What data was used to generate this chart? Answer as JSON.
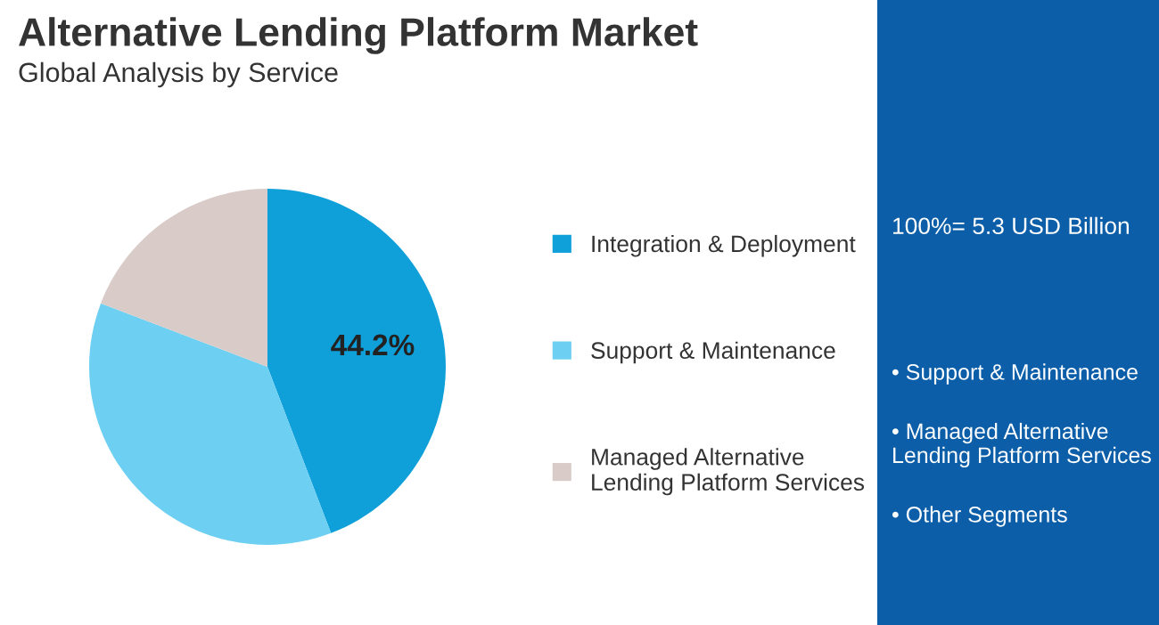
{
  "chart_data": [
    {
      "type": "pie",
      "title": "Alternative Lending Platform Market",
      "subtitle": "Global Analysis by Service",
      "categories": [
        "Integration & Deployment",
        "Support & Maintenance",
        "Managed Alternative Lending Platform Services"
      ],
      "values": [
        44.2,
        36.6,
        19.2
      ],
      "colors": [
        "#0f9fd9",
        "#6dcff2",
        "#d9ccc8"
      ],
      "value_labels": [
        "44.2%",
        null,
        null
      ],
      "legend": "right"
    },
    {
      "type": "other",
      "annotations": [
        "100%= 5.3 USD Billion",
        "• Support & Maintenance",
        "• Managed Alternative Lending Platform Services",
        "• Other Segments"
      ],
      "color": "#0c5ea8"
    }
  ]
}
